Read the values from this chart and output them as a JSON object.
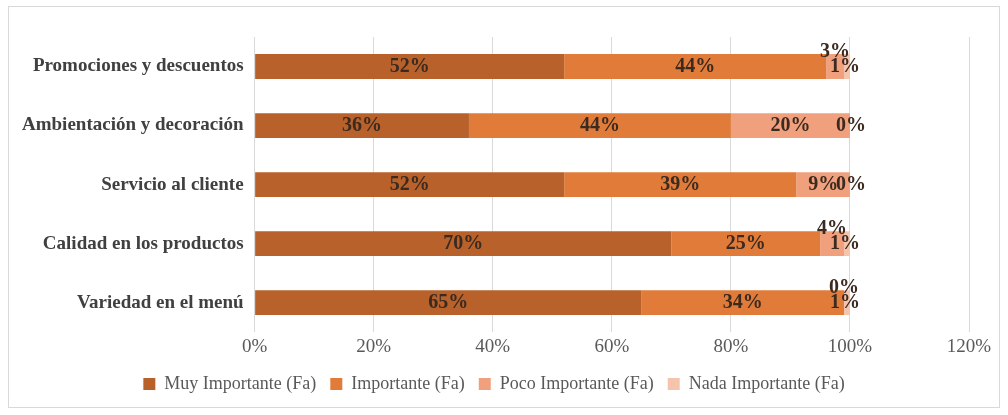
{
  "chart_data": {
    "type": "bar",
    "orientation": "horizontal",
    "stacked": true,
    "categories": [
      "Promociones y descuentos",
      "Ambientación y decoración",
      "Servicio al cliente",
      "Calidad en los productos",
      "Variedad en el menú"
    ],
    "series": [
      {
        "name": "Muy Importante (Fa)",
        "color": "#b8612a",
        "values": [
          52,
          36,
          52,
          70,
          65
        ],
        "value_labels": [
          "52%",
          "36%",
          "52%",
          "70%",
          "65%"
        ]
      },
      {
        "name": "Importante (Fa)",
        "color": "#e07b39",
        "values": [
          44,
          44,
          39,
          25,
          34
        ],
        "value_labels": [
          "44%",
          "44%",
          "39%",
          "25%",
          "34%"
        ]
      },
      {
        "name": "Poco Importante (Fa)",
        "color": "#f0a07c",
        "values": [
          3,
          20,
          9,
          4,
          0
        ],
        "value_labels": [
          "3%",
          "20%",
          "9%",
          "4%",
          "0%"
        ]
      },
      {
        "name": "Nada Importante (Fa)",
        "color": "#f6c4ad",
        "values": [
          1,
          0,
          0,
          1,
          1
        ],
        "value_labels": [
          "1%",
          "0%",
          "0%",
          "1%",
          "1%"
        ]
      }
    ],
    "xlim": [
      0,
      120
    ],
    "xticks": [
      {
        "value": 0,
        "label": "0%"
      },
      {
        "value": 20,
        "label": "20%"
      },
      {
        "value": 40,
        "label": "40%"
      },
      {
        "value": 60,
        "label": "60%"
      },
      {
        "value": 80,
        "label": "80%"
      },
      {
        "value": 100,
        "label": "100%"
      },
      {
        "value": 120,
        "label": "120%"
      }
    ],
    "grid": "x",
    "legend": "bottom"
  }
}
